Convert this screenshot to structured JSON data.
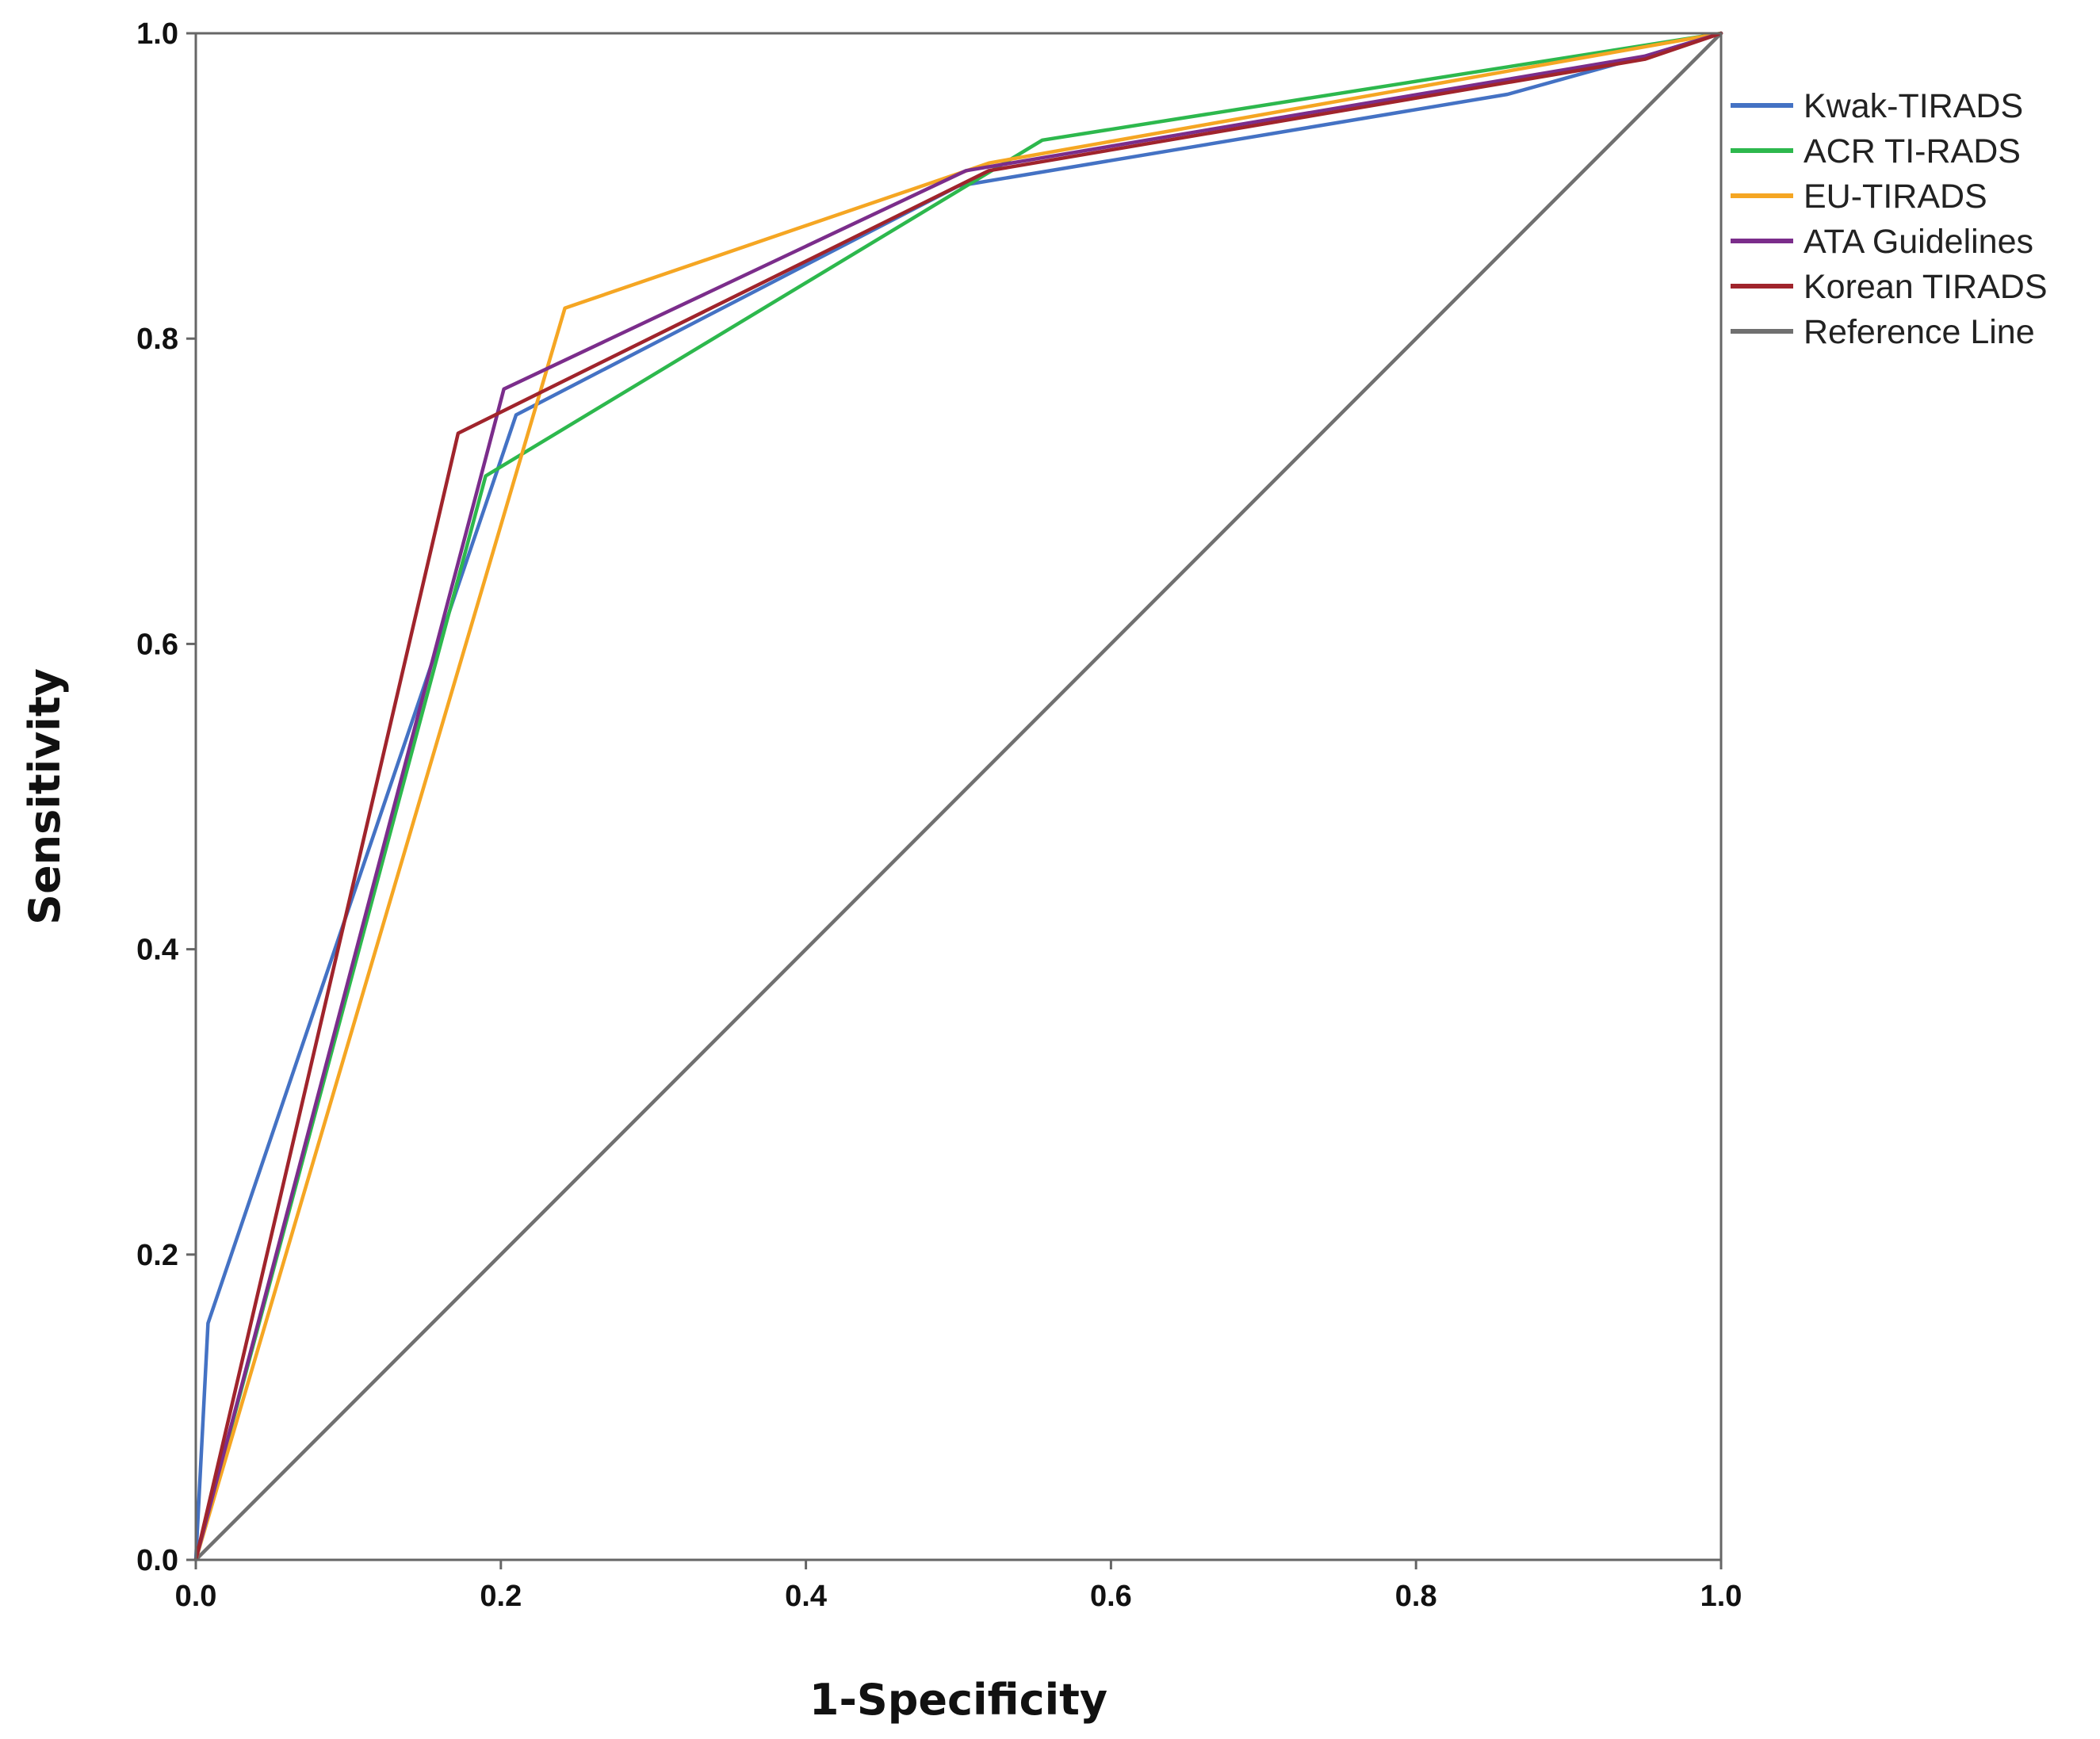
{
  "chart_data": {
    "type": "line",
    "title": "",
    "xlabel": "1-Specificity",
    "ylabel": "Sensitivity",
    "xlim": [
      0.0,
      1.0
    ],
    "ylim": [
      0.0,
      1.0
    ],
    "xticks": [
      "0.0",
      "0.2",
      "0.4",
      "0.6",
      "0.8",
      "1.0"
    ],
    "yticks": [
      "0.0",
      "0.2",
      "0.4",
      "0.6",
      "0.8",
      "1.0"
    ],
    "grid": false,
    "legend_position": "right",
    "series": [
      {
        "name": "Kwak-TIRADS",
        "color": "#4472C4",
        "x": [
          0.0,
          0.008,
          0.21,
          0.5,
          0.86,
          0.95,
          1.0
        ],
        "y": [
          0.0,
          0.155,
          0.75,
          0.9,
          0.96,
          0.985,
          1.0
        ]
      },
      {
        "name": "ACR TI-RADS",
        "color": "#2DB84D",
        "x": [
          0.0,
          0.19,
          0.555,
          1.0
        ],
        "y": [
          0.0,
          0.71,
          0.93,
          1.0
        ]
      },
      {
        "name": "EU-TIRADS",
        "color": "#F5A623",
        "x": [
          0.0,
          0.242,
          0.52,
          1.0
        ],
        "y": [
          0.0,
          0.82,
          0.915,
          1.0
        ]
      },
      {
        "name": "ATA Guidelines",
        "color": "#7B2D8B",
        "x": [
          0.0,
          0.202,
          0.505,
          0.95,
          1.0
        ],
        "y": [
          0.0,
          0.767,
          0.91,
          0.985,
          1.0
        ]
      },
      {
        "name": "Korean TIRADS",
        "color": "#A0242C",
        "x": [
          0.0,
          0.172,
          0.52,
          0.95,
          1.0
        ],
        "y": [
          0.0,
          0.738,
          0.91,
          0.983,
          1.0
        ]
      },
      {
        "name": "Reference Line",
        "color": "#707070",
        "x": [
          0.0,
          1.0
        ],
        "y": [
          0.0,
          1.0
        ]
      }
    ]
  }
}
